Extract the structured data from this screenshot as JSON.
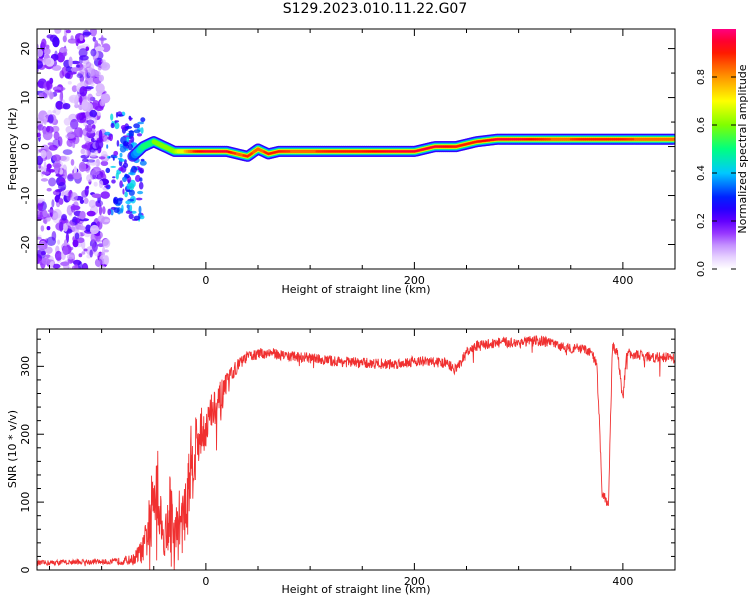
{
  "title": "S129.2023.010.11.22.G07",
  "chart_data": [
    {
      "type": "heatmap",
      "xlabel": "Height of straight line (km)",
      "ylabel": "Frequency (Hz)",
      "xlim": [
        -162,
        450
      ],
      "ylim": [
        -25,
        24
      ],
      "xticks": [
        0,
        200,
        400
      ],
      "yticks": [
        -20,
        -10,
        0,
        10,
        20
      ],
      "colorbar": {
        "label": "Normalized spectral amplitude",
        "range": [
          0,
          1
        ],
        "ticks": [
          "0.0",
          "0.2",
          "0.4",
          "0.6",
          "0.8"
        ],
        "colormap": [
          "#ffffff",
          "#e6c8ff",
          "#7a00ff",
          "#0000ff",
          "#00c8ff",
          "#00ff80",
          "#80ff00",
          "#ffff00",
          "#ff8000",
          "#ff0000",
          "#ff0080"
        ]
      },
      "ridge": {
        "x": [
          -70,
          -60,
          -50,
          -40,
          -30,
          -20,
          -10,
          0,
          20,
          30,
          40,
          50,
          60,
          70,
          90,
          120,
          150,
          180,
          200,
          220,
          240,
          260,
          280,
          300,
          320,
          340,
          360,
          380,
          400,
          420,
          450
        ],
        "frequency": [
          -2,
          0,
          1,
          0,
          -1,
          -1,
          -1,
          -1,
          -1,
          -1.5,
          -2,
          -0.5,
          -1.5,
          -1,
          -1,
          -1,
          -1,
          -1,
          -1,
          0,
          0,
          1,
          1.5,
          1.5,
          1.5,
          1.5,
          1.5,
          1.5,
          1.5,
          1.5,
          1.5
        ],
        "amplitude": [
          0.3,
          0.5,
          0.6,
          0.6,
          0.6,
          0.75,
          0.9,
          0.95,
          0.95,
          0.85,
          0.9,
          0.85,
          0.9,
          0.9,
          0.85,
          0.9,
          0.9,
          0.95,
          0.95,
          0.95,
          0.9,
          0.9,
          0.95,
          0.95,
          0.9,
          0.85,
          0.9,
          0.9,
          0.9,
          0.85,
          0.85
        ]
      },
      "noise_region_x": [
        -162,
        -95
      ]
    },
    {
      "type": "line",
      "xlabel": "Height of straight line (km)",
      "ylabel": "SNR (10 * v/v)",
      "xlim": [
        -162,
        450
      ],
      "ylim": [
        0,
        355
      ],
      "xticks": [
        0,
        200,
        400
      ],
      "yticks": [
        0,
        100,
        200,
        300
      ],
      "color": "#f03030",
      "x": [
        -162,
        -120,
        -90,
        -70,
        -60,
        -55,
        -50,
        -47,
        -45,
        -42,
        -40,
        -35,
        -30,
        -25,
        -20,
        -15,
        -10,
        -5,
        0,
        5,
        10,
        15,
        20,
        25,
        30,
        40,
        60,
        80,
        100,
        120,
        150,
        180,
        200,
        230,
        240,
        250,
        260,
        280,
        300,
        320,
        340,
        360,
        370,
        375,
        378,
        380,
        383,
        386,
        390,
        395,
        400,
        403,
        406,
        410,
        420,
        450
      ],
      "y": [
        10,
        12,
        12,
        15,
        30,
        60,
        110,
        160,
        100,
        60,
        40,
        90,
        50,
        70,
        80,
        150,
        180,
        200,
        210,
        230,
        240,
        250,
        270,
        290,
        300,
        315,
        320,
        315,
        312,
        308,
        305,
        303,
        308,
        305,
        295,
        320,
        330,
        335,
        335,
        338,
        330,
        325,
        320,
        300,
        200,
        110,
        105,
        90,
        330,
        320,
        250,
        310,
        320,
        318,
        315,
        312
      ],
      "noise_amplitude": [
        4,
        4,
        4,
        8,
        20,
        40,
        60,
        80,
        60,
        30,
        20,
        70,
        30,
        60,
        40,
        60,
        60,
        40,
        30,
        30,
        30,
        30,
        20,
        12,
        10,
        8,
        8,
        8,
        8,
        8,
        8,
        8,
        8,
        8,
        8,
        8,
        8,
        8,
        8,
        8,
        8,
        8,
        8,
        8,
        8,
        8,
        8,
        8,
        8,
        8,
        8,
        8,
        8,
        8,
        8,
        8
      ]
    }
  ]
}
